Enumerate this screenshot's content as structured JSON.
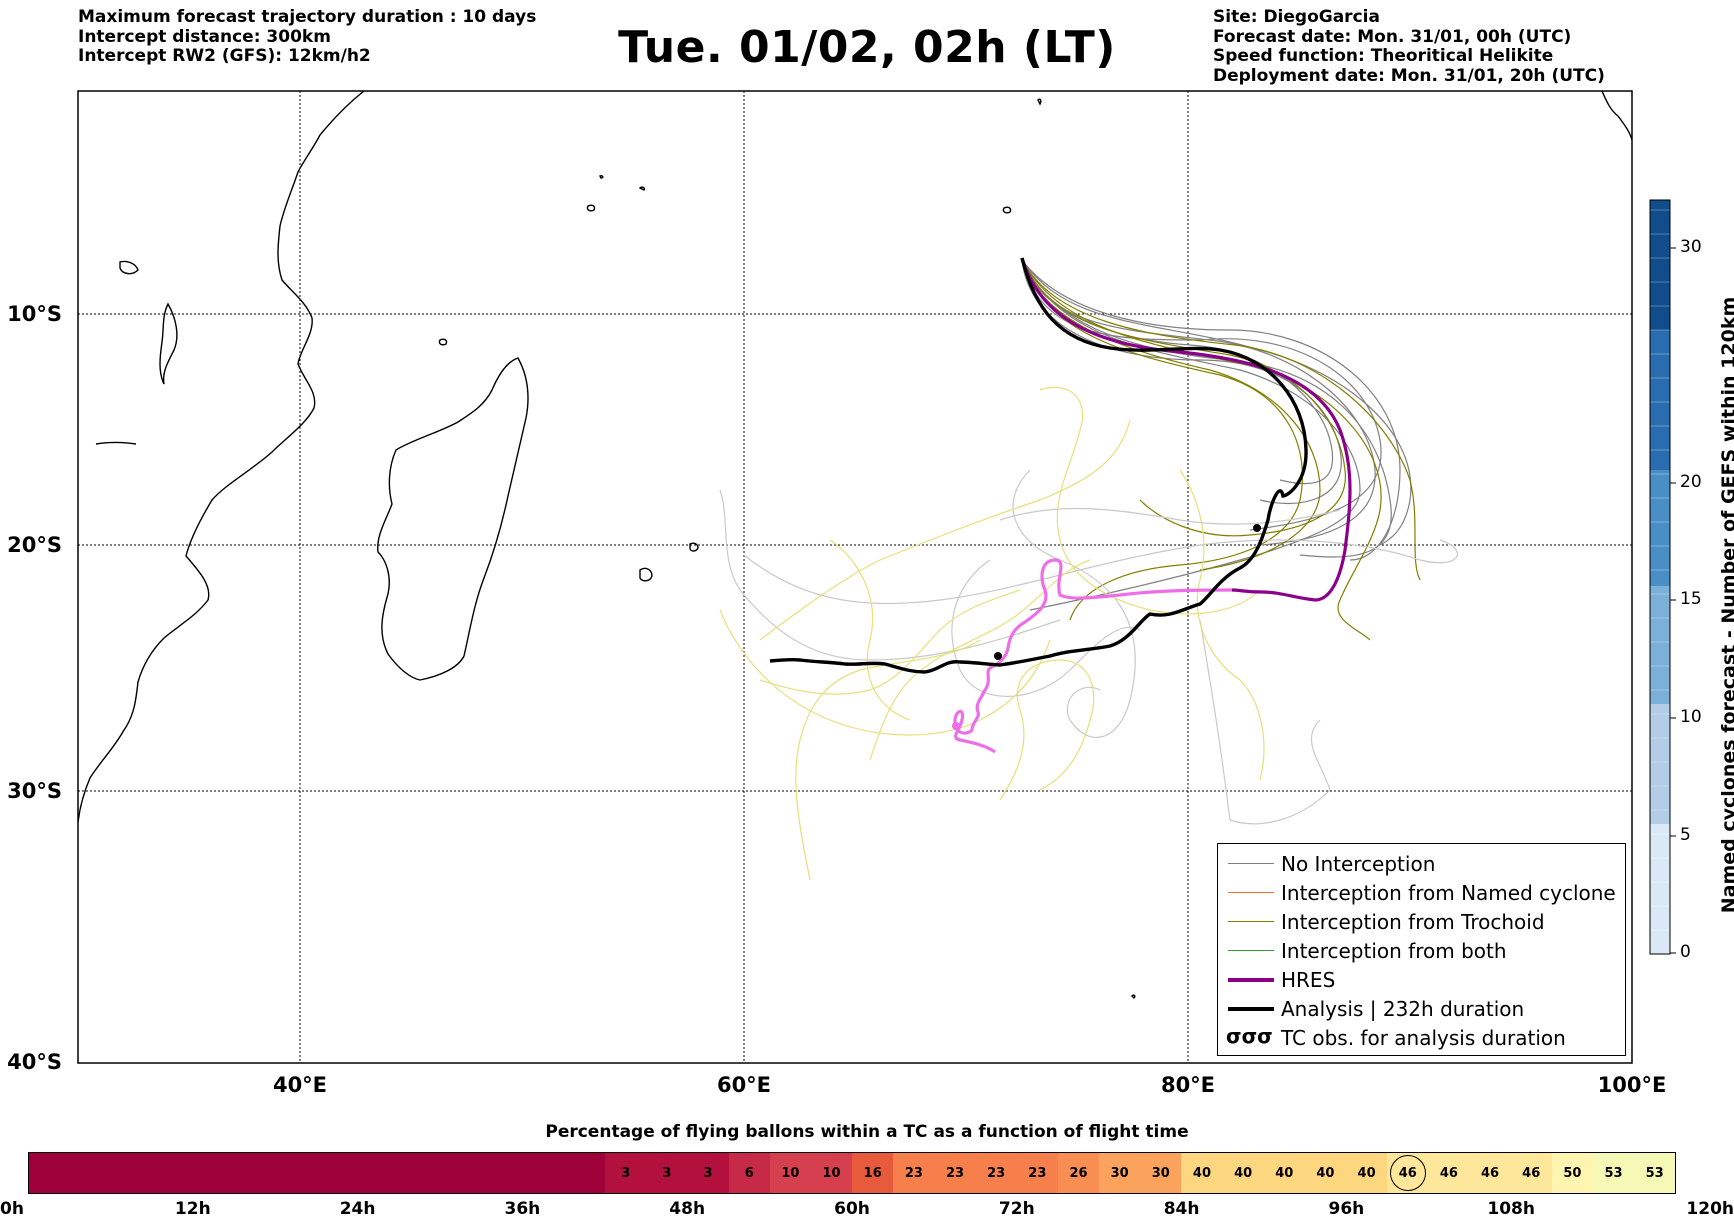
{
  "header": {
    "left": [
      "Maximum forecast trajectory duration : 10 days",
      "Intercept distance: 300km",
      "Intercept RW2 (GFS):  12km/h2"
    ],
    "title": "Tue. 01/02, 02h (LT)",
    "right": [
      "Site: DiegoGarcia",
      "Forecast date: Mon. 31/01, 00h (UTC)",
      "Speed function: Theoritical Helikite",
      "Deployment date: Mon. 31/01, 20h (UTC)"
    ]
  },
  "map": {
    "extent": {
      "lon_min": 30,
      "lon_max": 100,
      "lat_top": -0.5,
      "lat_bottom": -40
    },
    "lat_labels": [
      "10°S",
      "20°S",
      "30°S",
      "40°S"
    ],
    "lon_labels": [
      "40°E",
      "60°E",
      "80°E",
      "100°E"
    ],
    "site_marker": {
      "lon": 71.9,
      "lat": -24.8,
      "icon": "launch-point-dot"
    }
  },
  "colorbar": {
    "title": "Named cyclones forecast - Number of GEFS within 120km",
    "ticks": [
      "0",
      "5",
      "10",
      "15",
      "20",
      "30"
    ],
    "range": [
      0,
      32
    ]
  },
  "legend": {
    "items": [
      {
        "label": "No Interception",
        "color": "#808080",
        "style": "thin"
      },
      {
        "label": "Interception from Named cyclone",
        "color": "#ff6a2c",
        "style": "thin"
      },
      {
        "label": "Interception from Trochoid",
        "color": "#808000",
        "style": "thin"
      },
      {
        "label": "Interception from both",
        "color": "#2ca02c",
        "style": "thin"
      },
      {
        "label": "HRES",
        "color": "#8b008b",
        "style": "thick"
      },
      {
        "label": "Analysis | 232h duration",
        "color": "#000000",
        "style": "thick"
      },
      {
        "label": "TC obs. for analysis duration",
        "color": "#000000",
        "style": "symbol",
        "symbol": "σσσ"
      }
    ]
  },
  "percentage_bar": {
    "title": "Percentage of flying ballons within a TC as a function of flight time",
    "hour_labels": [
      "0h",
      "12h",
      "24h",
      "36h",
      "48h",
      "60h",
      "72h",
      "84h",
      "96h",
      "108h",
      "120h"
    ],
    "cells": [
      "",
      "",
      "",
      "",
      "",
      "",
      "",
      "",
      "",
      "",
      "",
      "",
      "",
      "",
      "3",
      "3",
      "3",
      "6",
      "10",
      "10",
      "16",
      "23",
      "23",
      "23",
      "23",
      "26",
      "30",
      "30",
      "40",
      "40",
      "40",
      "40",
      "40",
      "46",
      "46",
      "46",
      "46",
      "50",
      "53",
      "53"
    ],
    "current_index": 33
  }
}
